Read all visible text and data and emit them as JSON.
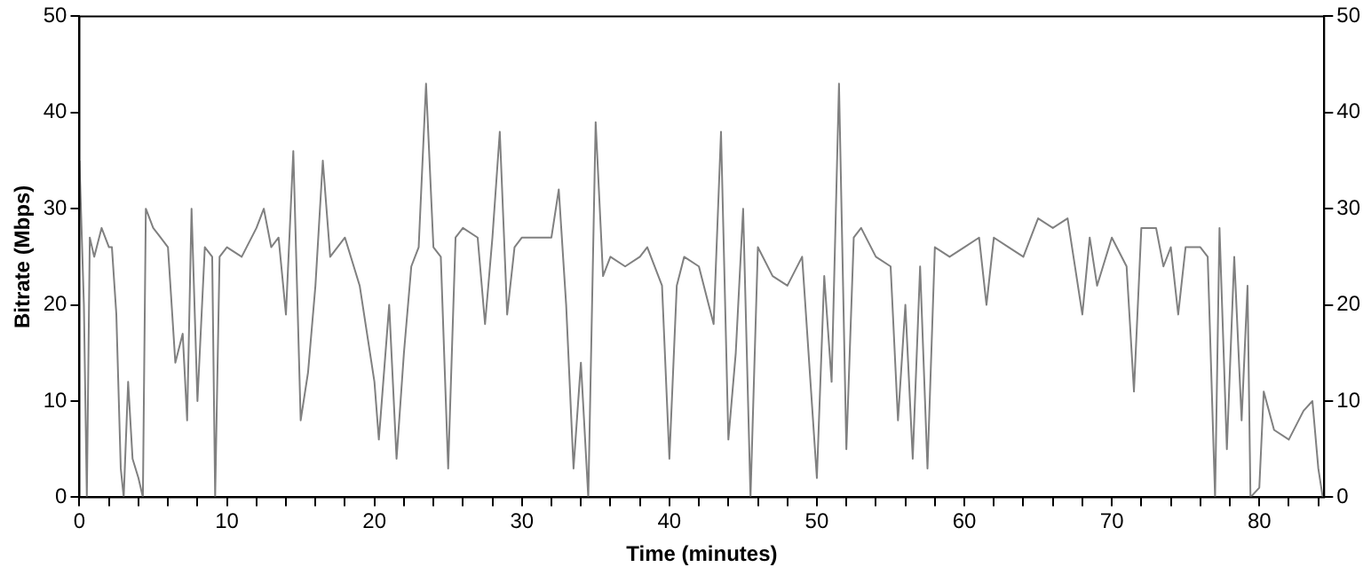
{
  "chart_data": {
    "type": "line",
    "xlabel": "Time (minutes)",
    "ylabel": "Bitrate (Mbps)",
    "xlim": [
      0,
      84.4
    ],
    "xticks": [
      0,
      {
        "value": 2,
        "label": null
      },
      {
        "value": 4,
        "label": null
      },
      {
        "value": 6,
        "label": null
      },
      {
        "value": 8,
        "label": null
      },
      10,
      {
        "value": 12,
        "label": null
      },
      {
        "value": 14,
        "label": null
      },
      {
        "value": 16,
        "label": null
      },
      {
        "value": 18,
        "label": null
      },
      20,
      {
        "value": 22,
        "label": null
      },
      {
        "value": 24,
        "label": null
      },
      {
        "value": 26,
        "label": null
      },
      {
        "value": 28,
        "label": null
      },
      30,
      {
        "value": 32,
        "label": null
      },
      {
        "value": 34,
        "label": null
      },
      {
        "value": 36,
        "label": null
      },
      {
        "value": 38,
        "label": null
      },
      40,
      {
        "value": 42,
        "label": null
      },
      {
        "value": 44,
        "label": null
      },
      {
        "value": 46,
        "label": null
      },
      {
        "value": 48,
        "label": null
      },
      50,
      {
        "value": 52,
        "label": null
      },
      {
        "value": 54,
        "label": null
      },
      {
        "value": 56,
        "label": null
      },
      {
        "value": 58,
        "label": null
      },
      60,
      {
        "value": 62,
        "label": null
      },
      {
        "value": 64,
        "label": null
      },
      {
        "value": 66,
        "label": null
      },
      {
        "value": 68,
        "label": null
      },
      70,
      {
        "value": 72,
        "label": null
      },
      {
        "value": 74,
        "label": null
      },
      {
        "value": 76,
        "label": null
      },
      {
        "value": 78,
        "label": null
      },
      80,
      {
        "value": 82,
        "label": null
      },
      {
        "value": 84,
        "label": null
      }
    ],
    "ylim": [
      0,
      50
    ],
    "yticks": [
      0,
      10,
      20,
      30,
      40,
      50
    ],
    "y2lim": [
      0,
      50
    ],
    "y2ticks": [
      0,
      10,
      20,
      30,
      40,
      50
    ],
    "grid": false,
    "legend": false,
    "marker": "none",
    "line_style": "solid",
    "series": [
      {
        "color": "#808080",
        "x": [
          0,
          0.3,
          0.5,
          0.7,
          1,
          1.5,
          2,
          2.2,
          2.5,
          2.8,
          3,
          3.3,
          3.6,
          4,
          4.3,
          4.5,
          5,
          5.5,
          6,
          6.5,
          7,
          7.3,
          7.6,
          8,
          8.5,
          9,
          9.2,
          9.5,
          10,
          11,
          12,
          12.5,
          13,
          13.5,
          14,
          14.5,
          15,
          15.5,
          16,
          16.5,
          17,
          18,
          19,
          20,
          20.3,
          21,
          21.5,
          22,
          22.5,
          23,
          23.5,
          24,
          24.5,
          25,
          25.5,
          26,
          27,
          27.5,
          28,
          28.5,
          29,
          29.5,
          30,
          31,
          32,
          32.5,
          33,
          33.5,
          34,
          34.5,
          35,
          35.5,
          36,
          37,
          38,
          38.5,
          39.5,
          40,
          40.5,
          41,
          42,
          43,
          43.5,
          44,
          44.5,
          45,
          45.5,
          46,
          47,
          48,
          49,
          50,
          50.5,
          51,
          51.5,
          52,
          52.5,
          53,
          54,
          55,
          55.5,
          56,
          56.5,
          57,
          57.5,
          58,
          59,
          60,
          61,
          61.5,
          62,
          63,
          64,
          65,
          66,
          67,
          68,
          68.5,
          69,
          70,
          71,
          71.5,
          72,
          73,
          73.5,
          74,
          74.5,
          75,
          76,
          76.5,
          77,
          77.3,
          77.8,
          78.3,
          78.8,
          79.2,
          79.4,
          80,
          80.3,
          81,
          82,
          83,
          83.6,
          84,
          84.3
        ],
        "values": [
          35,
          20,
          0,
          27,
          25,
          28,
          26,
          26,
          19,
          3,
          0,
          12,
          4,
          2,
          0,
          30,
          28,
          27,
          26,
          14,
          17,
          8,
          30,
          10,
          26,
          25,
          0,
          25,
          26,
          25,
          28,
          30,
          26,
          27,
          19,
          36,
          8,
          13,
          22,
          35,
          25,
          27,
          22,
          12,
          6,
          20,
          4,
          15,
          24,
          26,
          43,
          26,
          25,
          3,
          27,
          28,
          27,
          18,
          27,
          38,
          19,
          26,
          27,
          27,
          27,
          32,
          20,
          3,
          14,
          0,
          39,
          23,
          25,
          24,
          25,
          26,
          22,
          4,
          22,
          25,
          24,
          18,
          38,
          6,
          15,
          30,
          0,
          26,
          23,
          22,
          25,
          2,
          23,
          12,
          43,
          5,
          27,
          28,
          25,
          24,
          8,
          20,
          4,
          24,
          3,
          26,
          25,
          26,
          27,
          20,
          27,
          26,
          25,
          29,
          28,
          29,
          19,
          27,
          22,
          27,
          24,
          11,
          28,
          28,
          24,
          26,
          19,
          26,
          26,
          25,
          0,
          28,
          5,
          25,
          8,
          22,
          0,
          1,
          11,
          7,
          6,
          9,
          10,
          3,
          0
        ]
      }
    ]
  }
}
